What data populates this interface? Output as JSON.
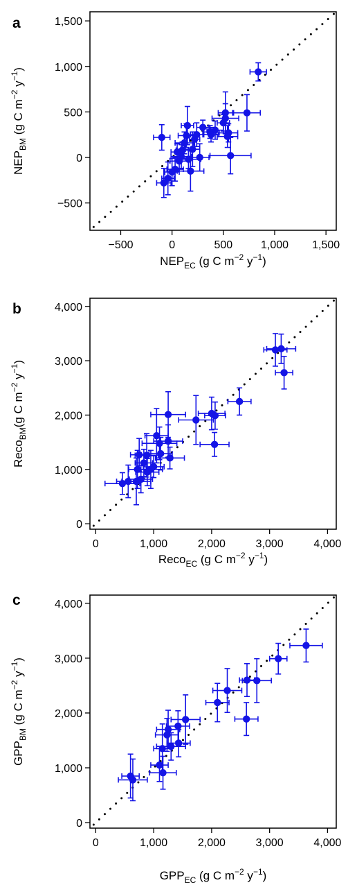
{
  "colors": {
    "points": "#1414e6",
    "identity_line": "#000000",
    "axis": "#000000"
  },
  "chart_data": [
    {
      "type": "scatter",
      "panel_label": "a",
      "xlabel_main": "NEP",
      "xlabel_sub": "EC",
      "xlabel_unit_pre": " (g C m",
      "xlabel_unit_exp": "−2",
      "xlabel_unit_post": " y",
      "ylabel_main": "NEP",
      "ylabel_sub": "BM",
      "ylabel_unit_pre": " (g C m",
      "ylabel_unit_exp": "−2",
      "ylabel_unit_post": " y",
      "unit_last_exp": "−1",
      "unit_close": ")",
      "xlim": [
        -800,
        1600
      ],
      "ylim": [
        -800,
        1600
      ],
      "xticks": [
        -500,
        0,
        500,
        1000,
        1500
      ],
      "xtick_labels": [
        "−500",
        "0",
        "500",
        "1,000",
        "1,500"
      ],
      "yticks": [
        -500,
        0,
        500,
        1000,
        1500
      ],
      "ytick_labels": [
        "−500",
        "0",
        "500",
        "1,000",
        "1,500"
      ],
      "identity_line": true,
      "points": [
        {
          "x": 840,
          "y": 940,
          "xerr": 80,
          "yerr": 100
        },
        {
          "x": 730,
          "y": 490,
          "xerr": 130,
          "yerr": 200
        },
        {
          "x": 520,
          "y": 430,
          "xerr": 130,
          "yerr": 160
        },
        {
          "x": 520,
          "y": 490,
          "xerr": 70,
          "yerr": 230
        },
        {
          "x": 500,
          "y": 380,
          "xerr": 60,
          "yerr": 90
        },
        {
          "x": 540,
          "y": 230,
          "xerr": 100,
          "yerr": 120
        },
        {
          "x": 550,
          "y": 270,
          "xerr": 90,
          "yerr": 100
        },
        {
          "x": 570,
          "y": 20,
          "xerr": 200,
          "yerr": 200
        },
        {
          "x": 420,
          "y": 300,
          "xerr": 80,
          "yerr": 100
        },
        {
          "x": 370,
          "y": 280,
          "xerr": 60,
          "yerr": 70
        },
        {
          "x": 300,
          "y": 330,
          "xerr": 60,
          "yerr": 80
        },
        {
          "x": 270,
          "y": 0,
          "xerr": 90,
          "yerr": 150
        },
        {
          "x": 240,
          "y": 250,
          "xerr": 60,
          "yerr": 130
        },
        {
          "x": 220,
          "y": 200,
          "xerr": 50,
          "yerr": 80
        },
        {
          "x": 200,
          "y": 90,
          "xerr": 70,
          "yerr": 190
        },
        {
          "x": 150,
          "y": 350,
          "xerr": 60,
          "yerr": 210
        },
        {
          "x": 140,
          "y": 240,
          "xerr": 80,
          "yerr": 130
        },
        {
          "x": 120,
          "y": 160,
          "xerr": 90,
          "yerr": 120
        },
        {
          "x": 100,
          "y": 80,
          "xerr": 60,
          "yerr": 90
        },
        {
          "x": 90,
          "y": 10,
          "xerr": 100,
          "yerr": 130
        },
        {
          "x": 70,
          "y": -40,
          "xerr": 90,
          "yerr": 110
        },
        {
          "x": 50,
          "y": 60,
          "xerr": 60,
          "yerr": 90
        },
        {
          "x": 30,
          "y": -130,
          "xerr": 80,
          "yerr": 130
        },
        {
          "x": 0,
          "y": -160,
          "xerr": 70,
          "yerr": 150
        },
        {
          "x": -40,
          "y": -230,
          "xerr": 60,
          "yerr": 180
        },
        {
          "x": -80,
          "y": -280,
          "xerr": 70,
          "yerr": 160
        },
        {
          "x": -100,
          "y": 220,
          "xerr": 80,
          "yerr": 140
        },
        {
          "x": 160,
          "y": -20,
          "xerr": 120,
          "yerr": 100
        },
        {
          "x": 180,
          "y": -150,
          "xerr": 130,
          "yerr": 220
        },
        {
          "x": 380,
          "y": 250,
          "xerr": 70,
          "yerr": 80
        }
      ]
    },
    {
      "type": "scatter",
      "panel_label": "b",
      "xlabel_main": "Reco",
      "xlabel_sub": "EC",
      "xlabel_unit_pre": " (g C m",
      "xlabel_unit_exp": "−2",
      "xlabel_unit_post": " y",
      "ylabel_main": "Reco",
      "ylabel_sub": "BM",
      "ylabel_unit_pre": "(g C m",
      "ylabel_unit_exp": "−2",
      "ylabel_unit_post": " y",
      "unit_last_exp": "−1",
      "unit_close": ")",
      "xlim": [
        -100,
        4150
      ],
      "ylim": [
        -100,
        4150
      ],
      "xticks": [
        0,
        1000,
        2000,
        3000,
        4000
      ],
      "xtick_labels": [
        "0",
        "1,000",
        "2,000",
        "3,000",
        "4,000"
      ],
      "yticks": [
        0,
        1000,
        2000,
        3000,
        4000
      ],
      "ytick_labels": [
        "0",
        "1,000",
        "2,000",
        "3,000",
        "4,000"
      ],
      "identity_line": true,
      "points": [
        {
          "x": 3200,
          "y": 3220,
          "xerr": 250,
          "yerr": 270
        },
        {
          "x": 3100,
          "y": 3200,
          "xerr": 200,
          "yerr": 300
        },
        {
          "x": 3250,
          "y": 2780,
          "xerr": 150,
          "yerr": 300
        },
        {
          "x": 2480,
          "y": 2250,
          "xerr": 200,
          "yerr": 250
        },
        {
          "x": 2000,
          "y": 2030,
          "xerr": 230,
          "yerr": 300
        },
        {
          "x": 2060,
          "y": 1990,
          "xerr": 180,
          "yerr": 250
        },
        {
          "x": 2050,
          "y": 1460,
          "xerr": 250,
          "yerr": 220
        },
        {
          "x": 1730,
          "y": 1910,
          "xerr": 300,
          "yerr": 450
        },
        {
          "x": 1250,
          "y": 2010,
          "xerr": 300,
          "yerr": 420
        },
        {
          "x": 1250,
          "y": 1520,
          "xerr": 250,
          "yerr": 300
        },
        {
          "x": 1050,
          "y": 1620,
          "xerr": 200,
          "yerr": 500
        },
        {
          "x": 1100,
          "y": 1480,
          "xerr": 300,
          "yerr": 300
        },
        {
          "x": 1280,
          "y": 1210,
          "xerr": 250,
          "yerr": 200
        },
        {
          "x": 1120,
          "y": 1290,
          "xerr": 200,
          "yerr": 300
        },
        {
          "x": 950,
          "y": 1000,
          "xerr": 200,
          "yerr": 350
        },
        {
          "x": 880,
          "y": 1260,
          "xerr": 200,
          "yerr": 400
        },
        {
          "x": 890,
          "y": 950,
          "xerr": 200,
          "yerr": 250
        },
        {
          "x": 780,
          "y": 820,
          "xerr": 200,
          "yerr": 250
        },
        {
          "x": 750,
          "y": 1270,
          "xerr": 150,
          "yerr": 300
        },
        {
          "x": 720,
          "y": 1000,
          "xerr": 150,
          "yerr": 350
        },
        {
          "x": 700,
          "y": 780,
          "xerr": 250,
          "yerr": 430
        },
        {
          "x": 560,
          "y": 780,
          "xerr": 200,
          "yerr": 300
        },
        {
          "x": 460,
          "y": 740,
          "xerr": 300,
          "yerr": 200
        },
        {
          "x": 1000,
          "y": 1050,
          "xerr": 180,
          "yerr": 200
        },
        {
          "x": 830,
          "y": 1120,
          "xerr": 150,
          "yerr": 250
        }
      ]
    },
    {
      "type": "scatter",
      "panel_label": "c",
      "xlabel_main": "GPP",
      "xlabel_sub": "EC",
      "xlabel_unit_pre": " (g C m",
      "xlabel_unit_exp": "−2",
      "xlabel_unit_post": " y",
      "ylabel_main": "GPP",
      "ylabel_sub": "BM",
      "ylabel_unit_pre": " (g C m",
      "ylabel_unit_exp": "−2",
      "ylabel_unit_post": " y",
      "unit_last_exp": "−1",
      "unit_close": ")",
      "xlim": [
        -100,
        4150
      ],
      "ylim": [
        -100,
        4150
      ],
      "xticks": [
        0,
        1000,
        2000,
        3000,
        4000
      ],
      "xtick_labels": [
        "0",
        "1,000",
        "2,000",
        "3,000",
        "4,000"
      ],
      "yticks": [
        0,
        1000,
        2000,
        3000,
        4000
      ],
      "ytick_labels": [
        "0",
        "1,000",
        "2,000",
        "3,000",
        "4,000"
      ],
      "identity_line": true,
      "points": [
        {
          "x": 3630,
          "y": 3230,
          "xerr": 280,
          "yerr": 300
        },
        {
          "x": 3150,
          "y": 2990,
          "xerr": 150,
          "yerr": 280
        },
        {
          "x": 2780,
          "y": 2590,
          "xerr": 250,
          "yerr": 400
        },
        {
          "x": 2610,
          "y": 2600,
          "xerr": 130,
          "yerr": 300
        },
        {
          "x": 2600,
          "y": 1890,
          "xerr": 200,
          "yerr": 300
        },
        {
          "x": 2270,
          "y": 2410,
          "xerr": 250,
          "yerr": 400
        },
        {
          "x": 2100,
          "y": 2190,
          "xerr": 200,
          "yerr": 350
        },
        {
          "x": 1550,
          "y": 1880,
          "xerr": 250,
          "yerr": 450
        },
        {
          "x": 1420,
          "y": 1760,
          "xerr": 200,
          "yerr": 280
        },
        {
          "x": 1430,
          "y": 1450,
          "xerr": 200,
          "yerr": 250
        },
        {
          "x": 1300,
          "y": 1390,
          "xerr": 250,
          "yerr": 250
        },
        {
          "x": 1230,
          "y": 1600,
          "xerr": 200,
          "yerr": 300
        },
        {
          "x": 1150,
          "y": 1350,
          "xerr": 150,
          "yerr": 450
        },
        {
          "x": 1100,
          "y": 1050,
          "xerr": 150,
          "yerr": 300
        },
        {
          "x": 1160,
          "y": 910,
          "xerr": 230,
          "yerr": 300
        },
        {
          "x": 1250,
          "y": 1700,
          "xerr": 200,
          "yerr": 350
        },
        {
          "x": 640,
          "y": 780,
          "xerr": 250,
          "yerr": 380
        },
        {
          "x": 600,
          "y": 850,
          "xerr": 150,
          "yerr": 400
        }
      ]
    }
  ]
}
